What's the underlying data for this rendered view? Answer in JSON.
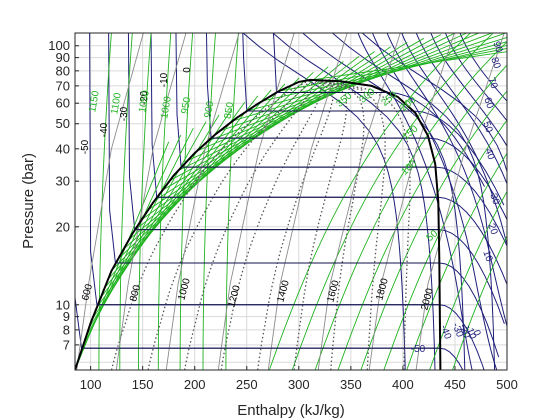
{
  "chart_data": {
    "type": "line",
    "title": "",
    "xlabel": "Enthalpy (kJ/kg)",
    "ylabel": "Pressure (bar)",
    "xlim": [
      85,
      500
    ],
    "ylim": [
      5.6,
      112
    ],
    "yscale": "log",
    "grid": true,
    "xticks": [
      100,
      150,
      200,
      250,
      300,
      350,
      400,
      450,
      500
    ],
    "yticks": [
      7,
      8,
      9,
      10,
      20,
      30,
      40,
      50,
      60,
      70,
      80,
      90,
      100
    ],
    "ytick_labels": [
      "7",
      "8",
      "9",
      "10",
      "20",
      "30",
      "40",
      "50",
      "60",
      "70",
      "80",
      "90",
      "100"
    ],
    "colors": {
      "isotherm": "#1f1f7a",
      "isentrope": "#21b321",
      "quality": "#555555",
      "isochore": "#8c8c8c",
      "dome": "#000000",
      "grid": "#d9d9d9"
    },
    "saturation_dome": {
      "critical_point": [
        311,
        73.8
      ],
      "liquid_line": [
        [
          85,
          5.6
        ],
        [
          100,
          8.5
        ],
        [
          120,
          13.5
        ],
        [
          140,
          18.8
        ],
        [
          160,
          24.8
        ],
        [
          180,
          31.6
        ],
        [
          200,
          38.5
        ],
        [
          220,
          45.5
        ],
        [
          240,
          52.5
        ],
        [
          260,
          59.5
        ],
        [
          280,
          66.5
        ],
        [
          300,
          72.5
        ],
        [
          311,
          73.8
        ]
      ],
      "vapor_line": [
        [
          311,
          73.8
        ],
        [
          340,
          73.0
        ],
        [
          370,
          70.0
        ],
        [
          395,
          63.5
        ],
        [
          412,
          55.0
        ],
        [
          424,
          45.0
        ],
        [
          431,
          35.0
        ],
        [
          434,
          25.0
        ],
        [
          435,
          15.0
        ],
        [
          436,
          5.6
        ]
      ]
    },
    "isotherm_labels": [
      "-50",
      "-40",
      "-30",
      "-20",
      "-10",
      "0",
      "10",
      "20",
      "30",
      "40",
      "50",
      "60",
      "70",
      "80",
      "90"
    ],
    "isotherm_labels_lowright": [
      "-50",
      "-40",
      "-30",
      "-20",
      "-10",
      "0"
    ],
    "isentrope_labels_left": [
      "1150",
      "1100",
      "1050",
      "1000",
      "950",
      "900",
      "850"
    ],
    "isentrope_labels_right": [
      "350",
      "300",
      "250",
      "200",
      "150",
      "100",
      "50"
    ],
    "isochore_labels": [
      "600",
      "800",
      "1000",
      "1200",
      "1400",
      "1600",
      "1800",
      "2000"
    ]
  }
}
